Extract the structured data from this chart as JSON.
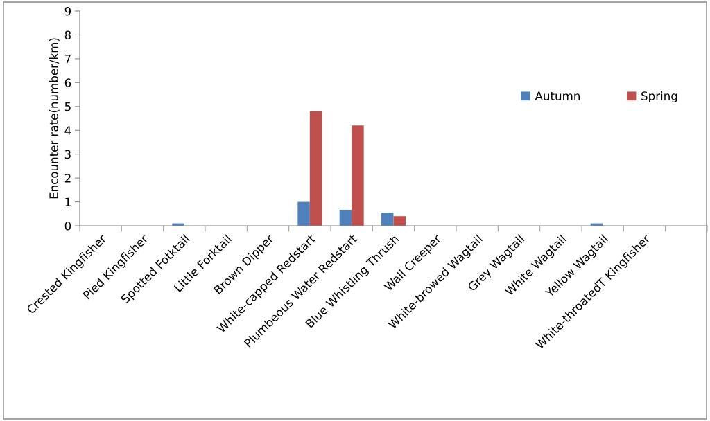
{
  "chart_data": {
    "type": "bar",
    "ylabel": "Encounter rate(number/km)",
    "categories": [
      "Crested Kingfisher",
      "Pied Kingfisher",
      "Spotted Fotktail",
      "Little Forktail",
      "Brown Dipper",
      "White-capped Redstart",
      "Plumbeous Water Redstart",
      "Blue Whistling Thrush",
      "Wall Creeper",
      "White-browed Wagtail",
      "Grey Wagtail",
      "White Wagtail",
      "Yellow Wagtail",
      "White-throatedT Kingfisher",
      null
    ],
    "series": [
      {
        "name": "Autumn",
        "color": "#4f81bd",
        "values": [
          0,
          0,
          0.1,
          0,
          0,
          1.0,
          0.67,
          0.55,
          0,
          0,
          0,
          0,
          0.1,
          0,
          0
        ]
      },
      {
        "name": "Spring",
        "color": "#c0504d",
        "values": [
          0,
          0,
          0,
          0,
          0,
          4.8,
          4.2,
          0.4,
          0,
          0,
          0,
          0,
          0,
          0,
          0
        ]
      }
    ],
    "ylim": [
      0,
      9
    ],
    "yticks": [
      0,
      1,
      2,
      3,
      4,
      5,
      6,
      7,
      8,
      9
    ],
    "grid": false,
    "legend": "right"
  }
}
